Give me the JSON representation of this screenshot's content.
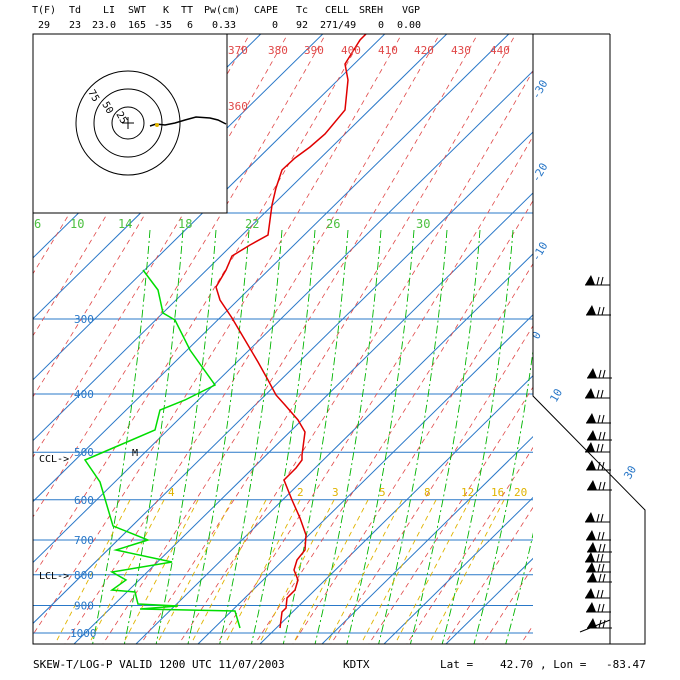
{
  "header": {
    "labels": [
      "T(F)",
      "Td",
      "LI",
      "SWT",
      "K",
      "TT",
      "Pw(cm)",
      "CAPE",
      "Tc",
      "CELL",
      "SREH",
      "VGP"
    ],
    "values": [
      "29",
      "23",
      "23.0",
      "165",
      "-35",
      "6",
      "0.33",
      "0",
      "92",
      "271/49",
      "0",
      "0.00"
    ]
  },
  "footer": {
    "title": "SKEW-T/LOG-P VALID 1200 UTC 11/07/2003",
    "station": "KDTX",
    "lat_label": "Lat =",
    "lat_value": "42.70",
    "lon_label": ", Lon =",
    "lon_value": "-83.47"
  },
  "chart_data": {
    "type": "line",
    "title": "SKEW-T/LOG-P VALID 1200 UTC 11/07/2003",
    "station": "KDTX",
    "xlabel": "",
    "ylabel": "",
    "pressure_ticks": [
      "300",
      "400",
      "500",
      "600",
      "700",
      "800",
      "900",
      "1000"
    ],
    "temperature_ticks": [
      "-30",
      "-20",
      "-10",
      "0",
      "10",
      "30"
    ],
    "theta_labels": [
      "370",
      "380",
      "390",
      "400",
      "410",
      "420",
      "430",
      "440"
    ],
    "theta_label_mid": "360",
    "mixing_ratio_labels_top": [
      "6",
      "10",
      "14",
      "18",
      "22",
      "26",
      "30"
    ],
    "mixing_ratio_labels_mid": [
      "4",
      "2",
      "3",
      "5",
      "8",
      "12",
      "16",
      "20"
    ],
    "level_markers": [
      {
        "label": "CCL->",
        "pressure": 510
      },
      {
        "label": "LCL->",
        "pressure": 800
      }
    ],
    "m_marker": "M",
    "hodograph_labels": [
      "75",
      "50",
      "25"
    ],
    "colors": {
      "temperature": "#e00000",
      "dewpoint": "#00dd00",
      "isobar": "#2a78c8",
      "isotherm": "#2a78c8",
      "dry_adiabat": "#e04848",
      "moist_adiabat": "#00b400",
      "mixing_ratio": "#e0b400",
      "frame": "#000000"
    },
    "series": [
      {
        "name": "temperature",
        "points_px_note": "profile",
        "values": [
          [
            -19,
            99
          ],
          [
            -2,
            600
          ],
          [
            -20,
            455
          ],
          [
            -14,
            500
          ],
          [
            -24,
            350
          ],
          [
            -35,
            140
          ]
        ]
      },
      {
        "name": "dewpoint",
        "values": [
          [
            -30,
            300
          ],
          [
            -26,
            420
          ],
          [
            -40,
            480
          ],
          [
            -43,
            600
          ],
          [
            -46,
            800
          ],
          [
            -48,
            900
          ]
        ]
      }
    ]
  }
}
